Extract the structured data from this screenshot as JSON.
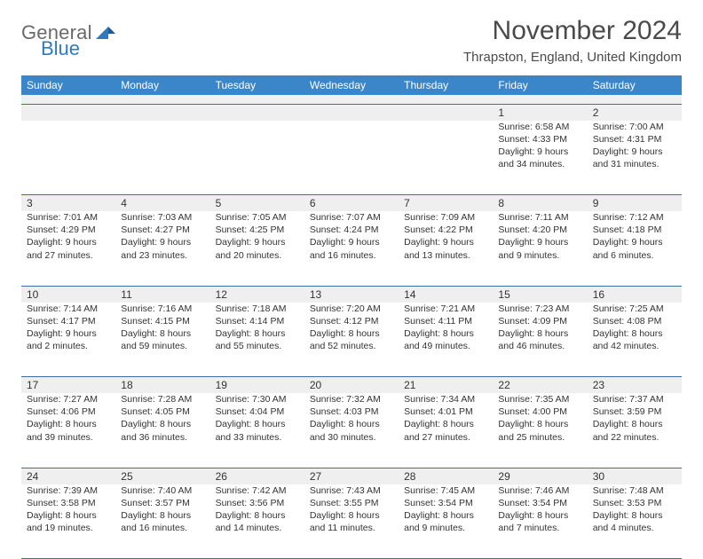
{
  "logo": {
    "word1": "General",
    "word2": "Blue",
    "color1": "#6a6a6a",
    "color2": "#2f7bbf"
  },
  "title": "November 2024",
  "location": "Thrapston, England, United Kingdom",
  "colors": {
    "header_bg": "#3a86c8",
    "header_text": "#ffffff",
    "cell_divider": "#3a6ea5",
    "daynum_bg": "#efefef",
    "spacer_bg": "#f0f0f0",
    "text": "#333333"
  },
  "day_headers": [
    "Sunday",
    "Monday",
    "Tuesday",
    "Wednesday",
    "Thursday",
    "Friday",
    "Saturday"
  ],
  "weeks": [
    [
      null,
      null,
      null,
      null,
      null,
      {
        "n": "1",
        "sunrise": "Sunrise: 6:58 AM",
        "sunset": "Sunset: 4:33 PM",
        "day1": "Daylight: 9 hours",
        "day2": "and 34 minutes."
      },
      {
        "n": "2",
        "sunrise": "Sunrise: 7:00 AM",
        "sunset": "Sunset: 4:31 PM",
        "day1": "Daylight: 9 hours",
        "day2": "and 31 minutes."
      }
    ],
    [
      {
        "n": "3",
        "sunrise": "Sunrise: 7:01 AM",
        "sunset": "Sunset: 4:29 PM",
        "day1": "Daylight: 9 hours",
        "day2": "and 27 minutes."
      },
      {
        "n": "4",
        "sunrise": "Sunrise: 7:03 AM",
        "sunset": "Sunset: 4:27 PM",
        "day1": "Daylight: 9 hours",
        "day2": "and 23 minutes."
      },
      {
        "n": "5",
        "sunrise": "Sunrise: 7:05 AM",
        "sunset": "Sunset: 4:25 PM",
        "day1": "Daylight: 9 hours",
        "day2": "and 20 minutes."
      },
      {
        "n": "6",
        "sunrise": "Sunrise: 7:07 AM",
        "sunset": "Sunset: 4:24 PM",
        "day1": "Daylight: 9 hours",
        "day2": "and 16 minutes."
      },
      {
        "n": "7",
        "sunrise": "Sunrise: 7:09 AM",
        "sunset": "Sunset: 4:22 PM",
        "day1": "Daylight: 9 hours",
        "day2": "and 13 minutes."
      },
      {
        "n": "8",
        "sunrise": "Sunrise: 7:11 AM",
        "sunset": "Sunset: 4:20 PM",
        "day1": "Daylight: 9 hours",
        "day2": "and 9 minutes."
      },
      {
        "n": "9",
        "sunrise": "Sunrise: 7:12 AM",
        "sunset": "Sunset: 4:18 PM",
        "day1": "Daylight: 9 hours",
        "day2": "and 6 minutes."
      }
    ],
    [
      {
        "n": "10",
        "sunrise": "Sunrise: 7:14 AM",
        "sunset": "Sunset: 4:17 PM",
        "day1": "Daylight: 9 hours",
        "day2": "and 2 minutes."
      },
      {
        "n": "11",
        "sunrise": "Sunrise: 7:16 AM",
        "sunset": "Sunset: 4:15 PM",
        "day1": "Daylight: 8 hours",
        "day2": "and 59 minutes."
      },
      {
        "n": "12",
        "sunrise": "Sunrise: 7:18 AM",
        "sunset": "Sunset: 4:14 PM",
        "day1": "Daylight: 8 hours",
        "day2": "and 55 minutes."
      },
      {
        "n": "13",
        "sunrise": "Sunrise: 7:20 AM",
        "sunset": "Sunset: 4:12 PM",
        "day1": "Daylight: 8 hours",
        "day2": "and 52 minutes."
      },
      {
        "n": "14",
        "sunrise": "Sunrise: 7:21 AM",
        "sunset": "Sunset: 4:11 PM",
        "day1": "Daylight: 8 hours",
        "day2": "and 49 minutes."
      },
      {
        "n": "15",
        "sunrise": "Sunrise: 7:23 AM",
        "sunset": "Sunset: 4:09 PM",
        "day1": "Daylight: 8 hours",
        "day2": "and 46 minutes."
      },
      {
        "n": "16",
        "sunrise": "Sunrise: 7:25 AM",
        "sunset": "Sunset: 4:08 PM",
        "day1": "Daylight: 8 hours",
        "day2": "and 42 minutes."
      }
    ],
    [
      {
        "n": "17",
        "sunrise": "Sunrise: 7:27 AM",
        "sunset": "Sunset: 4:06 PM",
        "day1": "Daylight: 8 hours",
        "day2": "and 39 minutes."
      },
      {
        "n": "18",
        "sunrise": "Sunrise: 7:28 AM",
        "sunset": "Sunset: 4:05 PM",
        "day1": "Daylight: 8 hours",
        "day2": "and 36 minutes."
      },
      {
        "n": "19",
        "sunrise": "Sunrise: 7:30 AM",
        "sunset": "Sunset: 4:04 PM",
        "day1": "Daylight: 8 hours",
        "day2": "and 33 minutes."
      },
      {
        "n": "20",
        "sunrise": "Sunrise: 7:32 AM",
        "sunset": "Sunset: 4:03 PM",
        "day1": "Daylight: 8 hours",
        "day2": "and 30 minutes."
      },
      {
        "n": "21",
        "sunrise": "Sunrise: 7:34 AM",
        "sunset": "Sunset: 4:01 PM",
        "day1": "Daylight: 8 hours",
        "day2": "and 27 minutes."
      },
      {
        "n": "22",
        "sunrise": "Sunrise: 7:35 AM",
        "sunset": "Sunset: 4:00 PM",
        "day1": "Daylight: 8 hours",
        "day2": "and 25 minutes."
      },
      {
        "n": "23",
        "sunrise": "Sunrise: 7:37 AM",
        "sunset": "Sunset: 3:59 PM",
        "day1": "Daylight: 8 hours",
        "day2": "and 22 minutes."
      }
    ],
    [
      {
        "n": "24",
        "sunrise": "Sunrise: 7:39 AM",
        "sunset": "Sunset: 3:58 PM",
        "day1": "Daylight: 8 hours",
        "day2": "and 19 minutes."
      },
      {
        "n": "25",
        "sunrise": "Sunrise: 7:40 AM",
        "sunset": "Sunset: 3:57 PM",
        "day1": "Daylight: 8 hours",
        "day2": "and 16 minutes."
      },
      {
        "n": "26",
        "sunrise": "Sunrise: 7:42 AM",
        "sunset": "Sunset: 3:56 PM",
        "day1": "Daylight: 8 hours",
        "day2": "and 14 minutes."
      },
      {
        "n": "27",
        "sunrise": "Sunrise: 7:43 AM",
        "sunset": "Sunset: 3:55 PM",
        "day1": "Daylight: 8 hours",
        "day2": "and 11 minutes."
      },
      {
        "n": "28",
        "sunrise": "Sunrise: 7:45 AM",
        "sunset": "Sunset: 3:54 PM",
        "day1": "Daylight: 8 hours",
        "day2": "and 9 minutes."
      },
      {
        "n": "29",
        "sunrise": "Sunrise: 7:46 AM",
        "sunset": "Sunset: 3:54 PM",
        "day1": "Daylight: 8 hours",
        "day2": "and 7 minutes."
      },
      {
        "n": "30",
        "sunrise": "Sunrise: 7:48 AM",
        "sunset": "Sunset: 3:53 PM",
        "day1": "Daylight: 8 hours",
        "day2": "and 4 minutes."
      }
    ]
  ]
}
